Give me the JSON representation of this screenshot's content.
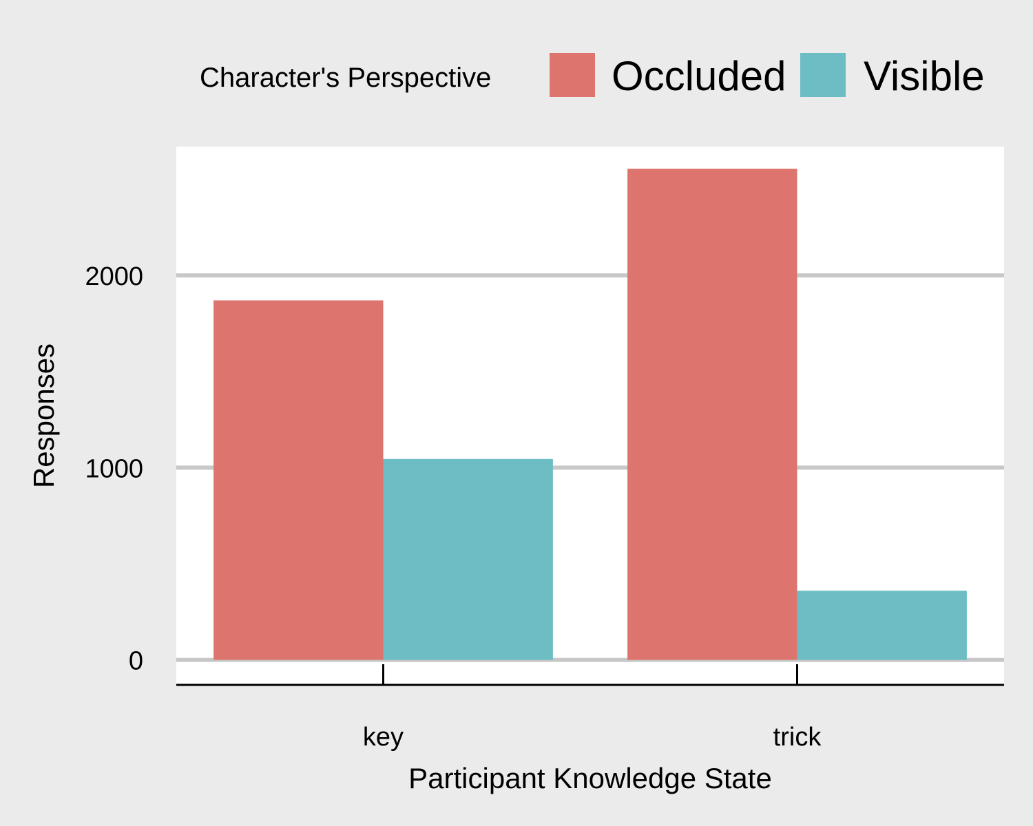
{
  "chart_data": {
    "type": "bar",
    "title": "",
    "xlabel": "Participant Knowledge State",
    "ylabel": "Responses",
    "categories": [
      "key",
      "trick"
    ],
    "series": [
      {
        "name": "Occluded",
        "values": [
          1870,
          2555
        ],
        "color": "#dd756e"
      },
      {
        "name": "Visible",
        "values": [
          1045,
          360
        ],
        "color": "#6dbec4"
      }
    ],
    "ylim": [
      -130,
      2670
    ],
    "yticks": [
      0,
      1000,
      2000
    ],
    "grid": true,
    "legend": {
      "title": "Character's Perspective",
      "position": "top-right"
    }
  }
}
